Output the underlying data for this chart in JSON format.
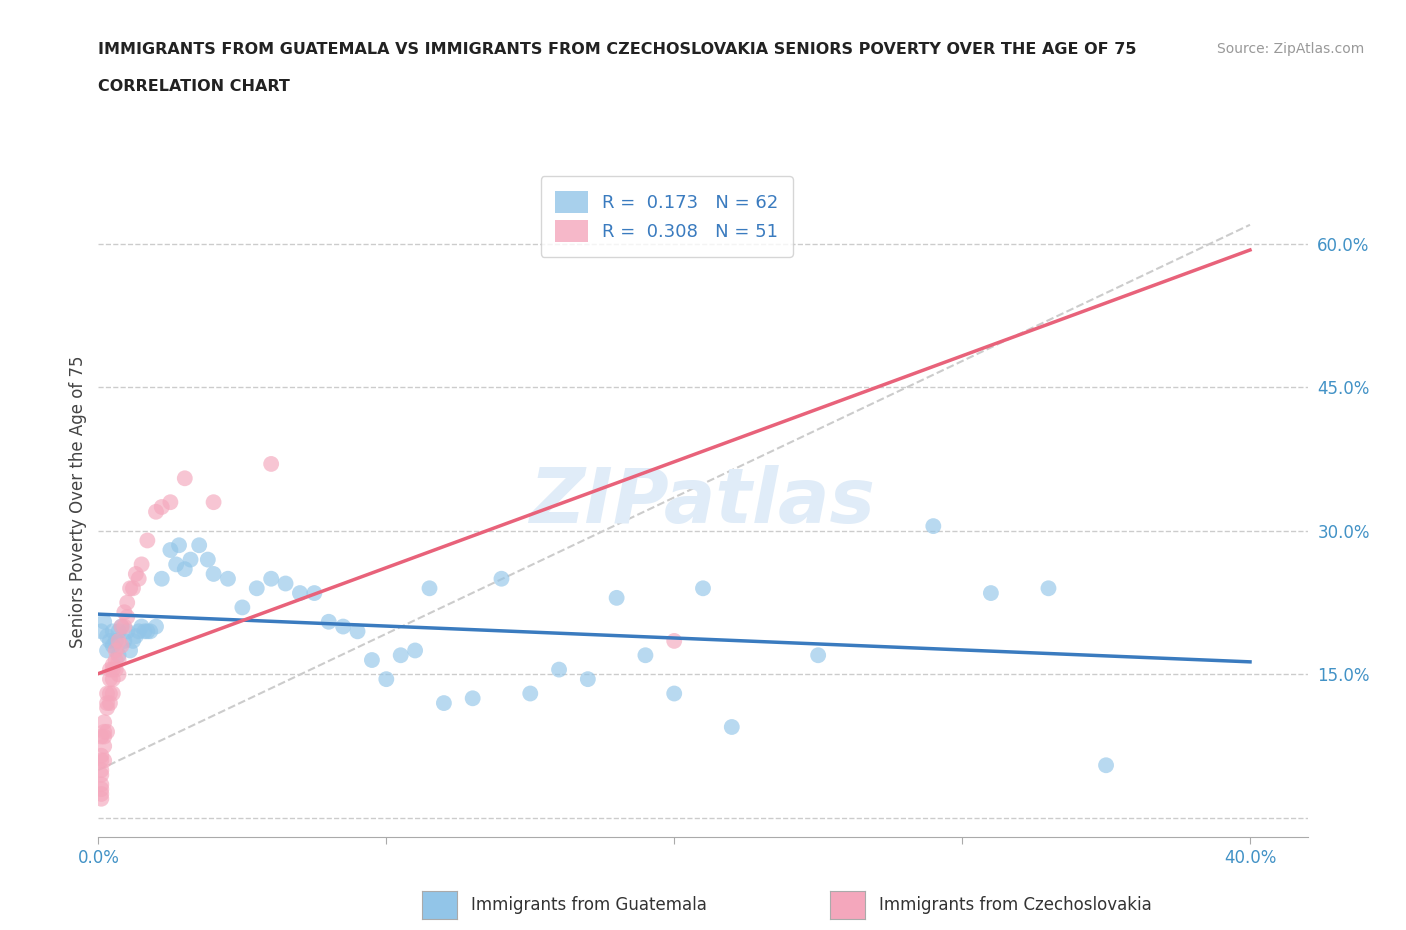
{
  "title_line1": "IMMIGRANTS FROM GUATEMALA VS IMMIGRANTS FROM CZECHOSLOVAKIA SENIORS POVERTY OVER THE AGE OF 75",
  "title_line2": "CORRELATION CHART",
  "source_text": "Source: ZipAtlas.com",
  "ylabel": "Seniors Poverty Over the Age of 75",
  "xlim": [
    0.0,
    0.42
  ],
  "ylim": [
    -0.02,
    0.68
  ],
  "ytick_positions": [
    0.0,
    0.15,
    0.3,
    0.45,
    0.6
  ],
  "ytick_labels": [
    "",
    "15.0%",
    "30.0%",
    "45.0%",
    "60.0%"
  ],
  "xtick_positions": [
    0.0,
    0.1,
    0.2,
    0.3,
    0.4
  ],
  "xtick_labels": [
    "0.0%",
    "",
    "",
    "",
    "40.0%"
  ],
  "watermark": "ZIPatlas",
  "color_guatemala": "#92c5e8",
  "color_czechoslovakia": "#f4a7bc",
  "color_line_guatemala": "#3a7bbf",
  "color_line_czechoslovakia": "#e8627a",
  "R_guatemala": 0.173,
  "N_guatemala": 62,
  "R_czechoslovakia": 0.308,
  "N_czechoslovakia": 51,
  "guatemala_x": [
    0.001,
    0.002,
    0.003,
    0.003,
    0.004,
    0.005,
    0.005,
    0.006,
    0.007,
    0.007,
    0.008,
    0.009,
    0.01,
    0.011,
    0.012,
    0.013,
    0.014,
    0.015,
    0.016,
    0.017,
    0.018,
    0.02,
    0.022,
    0.025,
    0.027,
    0.028,
    0.03,
    0.032,
    0.035,
    0.038,
    0.04,
    0.045,
    0.05,
    0.055,
    0.06,
    0.065,
    0.07,
    0.075,
    0.08,
    0.085,
    0.09,
    0.095,
    0.1,
    0.105,
    0.11,
    0.115,
    0.12,
    0.13,
    0.14,
    0.15,
    0.16,
    0.17,
    0.18,
    0.19,
    0.2,
    0.21,
    0.22,
    0.25,
    0.29,
    0.31,
    0.33,
    0.35
  ],
  "guatemala_y": [
    0.195,
    0.205,
    0.19,
    0.175,
    0.185,
    0.195,
    0.18,
    0.185,
    0.195,
    0.17,
    0.2,
    0.185,
    0.195,
    0.175,
    0.185,
    0.19,
    0.195,
    0.2,
    0.195,
    0.195,
    0.195,
    0.2,
    0.25,
    0.28,
    0.265,
    0.285,
    0.26,
    0.27,
    0.285,
    0.27,
    0.255,
    0.25,
    0.22,
    0.24,
    0.25,
    0.245,
    0.235,
    0.235,
    0.205,
    0.2,
    0.195,
    0.165,
    0.145,
    0.17,
    0.175,
    0.24,
    0.12,
    0.125,
    0.25,
    0.13,
    0.155,
    0.145,
    0.23,
    0.17,
    0.13,
    0.24,
    0.095,
    0.17,
    0.305,
    0.235,
    0.24,
    0.055
  ],
  "czechoslovakia_x": [
    0.001,
    0.001,
    0.001,
    0.001,
    0.001,
    0.001,
    0.001,
    0.001,
    0.001,
    0.002,
    0.002,
    0.002,
    0.002,
    0.002,
    0.003,
    0.003,
    0.003,
    0.003,
    0.004,
    0.004,
    0.004,
    0.004,
    0.005,
    0.005,
    0.005,
    0.005,
    0.006,
    0.006,
    0.006,
    0.007,
    0.007,
    0.007,
    0.008,
    0.008,
    0.009,
    0.009,
    0.01,
    0.01,
    0.011,
    0.012,
    0.013,
    0.014,
    0.015,
    0.017,
    0.02,
    0.022,
    0.025,
    0.03,
    0.04,
    0.06,
    0.2
  ],
  "czechoslovakia_y": [
    0.085,
    0.065,
    0.06,
    0.05,
    0.045,
    0.035,
    0.03,
    0.025,
    0.02,
    0.1,
    0.09,
    0.085,
    0.075,
    0.06,
    0.13,
    0.12,
    0.115,
    0.09,
    0.155,
    0.145,
    0.13,
    0.12,
    0.16,
    0.155,
    0.145,
    0.13,
    0.175,
    0.165,
    0.155,
    0.185,
    0.165,
    0.15,
    0.2,
    0.18,
    0.215,
    0.2,
    0.225,
    0.21,
    0.24,
    0.24,
    0.255,
    0.25,
    0.265,
    0.29,
    0.32,
    0.325,
    0.33,
    0.355,
    0.33,
    0.37,
    0.185
  ]
}
